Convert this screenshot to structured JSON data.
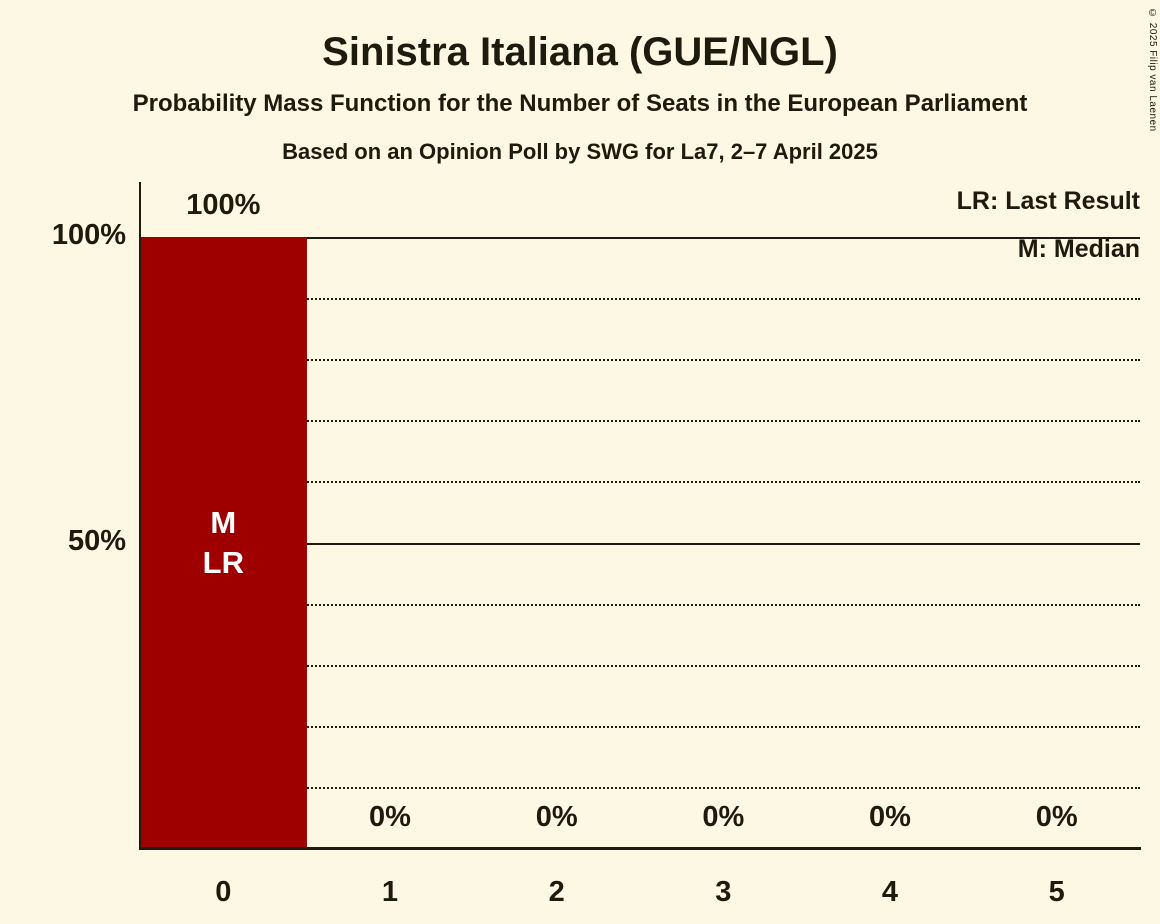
{
  "title": "Sinistra Italiana (GUE/NGL)",
  "subtitle": "Probability Mass Function for the Number of Seats in the European Parliament",
  "source_line": "Based on an Opinion Poll by SWG for La7, 2–7 April 2025",
  "copyright": "© 2025 Filip van Laenen",
  "legend": {
    "last_result": "LR: Last Result",
    "median": "M: Median"
  },
  "colors": {
    "background": "#fcf8e3",
    "text": "#1d1a0e",
    "bar": "#9e0000",
    "bar_text": "#ffffff"
  },
  "chart_data": {
    "type": "bar",
    "title": "Sinistra Italiana (GUE/NGL)",
    "subtitle": "Probability Mass Function for the Number of Seats in the European Parliament",
    "categories": [
      "0",
      "1",
      "2",
      "3",
      "4",
      "5"
    ],
    "values": [
      100,
      0,
      0,
      0,
      0,
      0
    ],
    "value_labels": [
      "100%",
      "0%",
      "0%",
      "0%",
      "0%",
      "0%"
    ],
    "xlabel": "",
    "ylabel": "",
    "ylim": [
      0,
      100
    ],
    "yticks": [
      {
        "value": 100,
        "label": "100%"
      },
      {
        "value": 50,
        "label": "50%"
      }
    ],
    "gridlines": {
      "dotted": [
        10,
        20,
        30,
        40,
        60,
        70,
        80,
        90
      ],
      "solid": [
        50,
        100
      ]
    },
    "grid": true,
    "legend_position": "top-right",
    "annotated_bar": {
      "category": "0",
      "labels": [
        "M",
        "LR"
      ],
      "meaning": "M: Median, LR: Last Result"
    }
  }
}
